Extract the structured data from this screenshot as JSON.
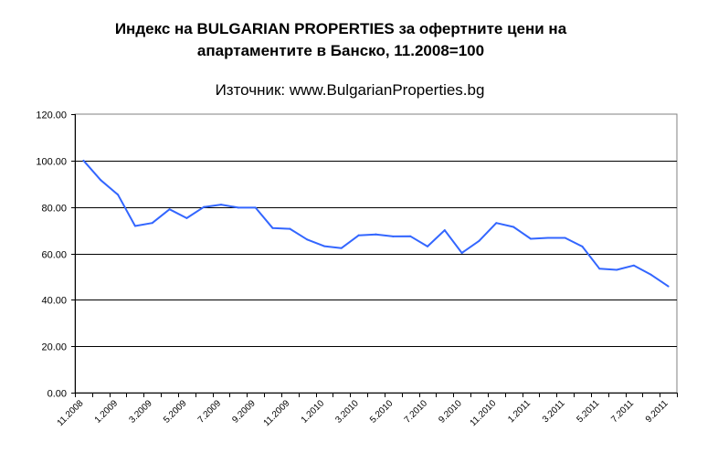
{
  "chart_data": {
    "type": "line",
    "title": [
      "Индекс на BULGARIAN PROPERTIES за офертните цени на",
      "апартаментите в Банско, 11.2008=100"
    ],
    "subtitle": "Източник: www.BulgarianProperties.bg",
    "xlabel": "",
    "ylabel": "",
    "ylim": [
      0,
      120
    ],
    "yticks": [
      "0.00",
      "20.00",
      "40.00",
      "60.00",
      "80.00",
      "100.00",
      "120.00"
    ],
    "ytick_values": [
      0,
      20,
      40,
      60,
      80,
      100,
      120
    ],
    "grid": true,
    "legend": "none",
    "line_color": "#3366ff",
    "categories": [
      "11.2008",
      "12.2008",
      "1.2009",
      "2.2009",
      "3.2009",
      "4.2009",
      "5.2009",
      "6.2009",
      "7.2009",
      "8.2009",
      "9.2009",
      "10.2009",
      "11.2009",
      "12.2009",
      "1.2010",
      "2.2010",
      "3.2010",
      "4.2010",
      "5.2010",
      "6.2010",
      "7.2010",
      "8.2010",
      "9.2010",
      "10.2010",
      "11.2010",
      "12.2010",
      "1.2011",
      "2.2011",
      "3.2011",
      "4.2011",
      "5.2011",
      "6.2011",
      "7.2011",
      "8.2011",
      "9.2011"
    ],
    "xtick_labels": [
      "11.2008",
      "1.2009",
      "3.2009",
      "5.2009",
      "7.2009",
      "9.2009",
      "11.2009",
      "1.2010",
      "3.2010",
      "5.2010",
      "7.2010",
      "9.2010",
      "11.2010",
      "1.2011",
      "3.2011",
      "5.2011",
      "7.2011",
      "9.2011"
    ],
    "values": [
      100,
      91.6,
      85.3,
      71.8,
      73.1,
      79.0,
      75.2,
      80.0,
      81.0,
      79.7,
      79.7,
      70.9,
      70.6,
      66.0,
      63.1,
      62.3,
      67.8,
      68.2,
      67.3,
      67.4,
      63.0,
      70.0,
      60.2,
      65.4,
      73.1,
      71.4,
      66.3,
      66.7,
      66.7,
      63.0,
      53.4,
      52.9,
      54.8,
      50.8,
      45.8
    ]
  }
}
